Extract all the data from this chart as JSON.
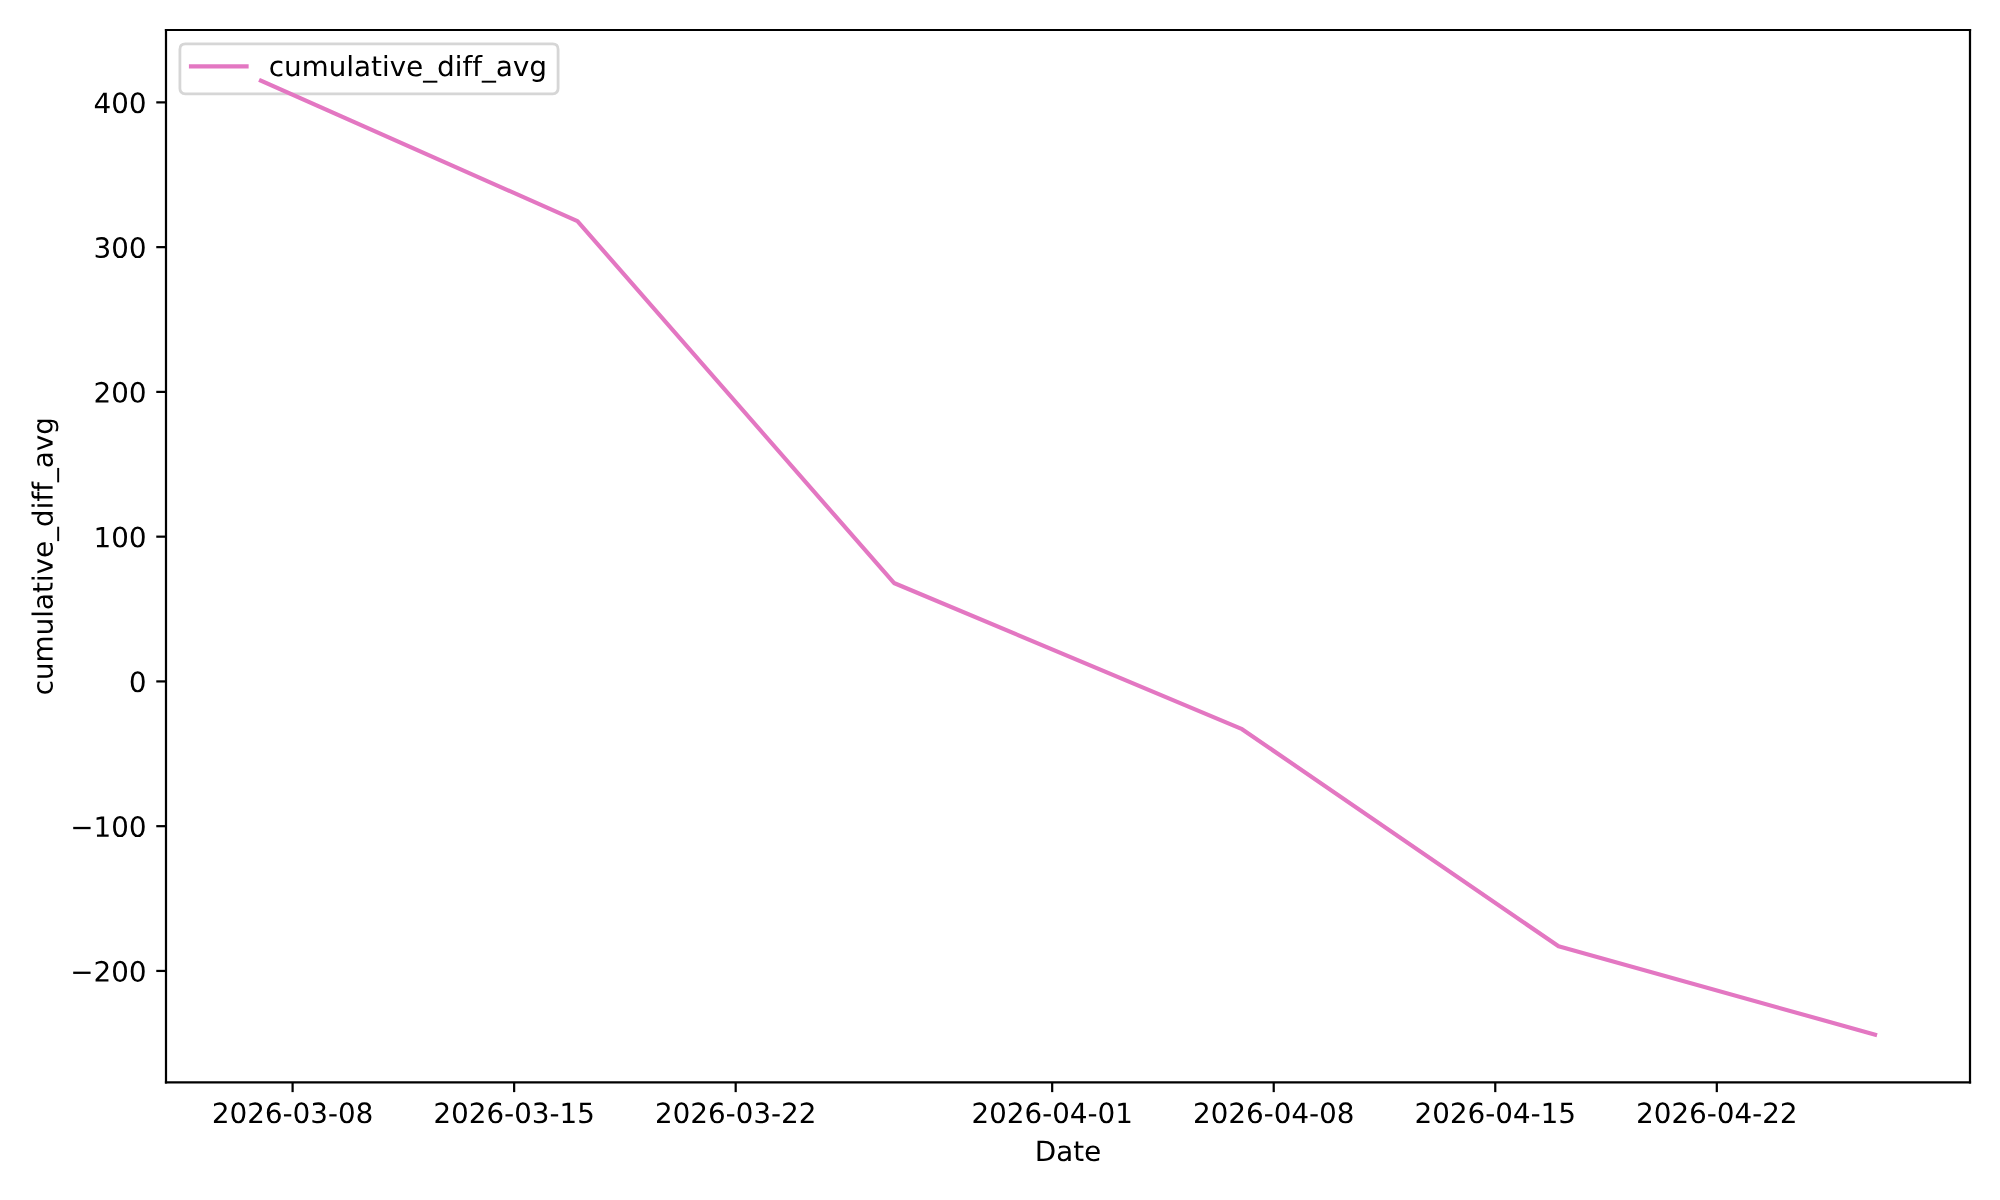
{
  "chart_data": {
    "type": "line",
    "xlabel": "Date",
    "ylabel": "cumulative_diff_avg",
    "x": [
      "2026-03-07",
      "2026-03-17",
      "2026-03-27",
      "2026-04-07",
      "2026-04-17",
      "2026-04-27"
    ],
    "series": [
      {
        "name": "cumulative_diff_avg",
        "color": "#e377c2",
        "values": [
          415,
          318,
          68,
          -33,
          -183,
          -244
        ]
      }
    ],
    "xlim": [
      "2026-03-04",
      "2026-04-30"
    ],
    "ylim": [
      -277,
      450
    ],
    "xticks": [
      "2026-03-08",
      "2026-03-15",
      "2026-03-22",
      "2026-04-01",
      "2026-04-08",
      "2026-04-15",
      "2026-04-22"
    ],
    "yticks": [
      -200,
      -100,
      0,
      100,
      200,
      300,
      400
    ],
    "legend": "top left",
    "grid": false,
    "marker": "none",
    "line_style": "solid"
  }
}
